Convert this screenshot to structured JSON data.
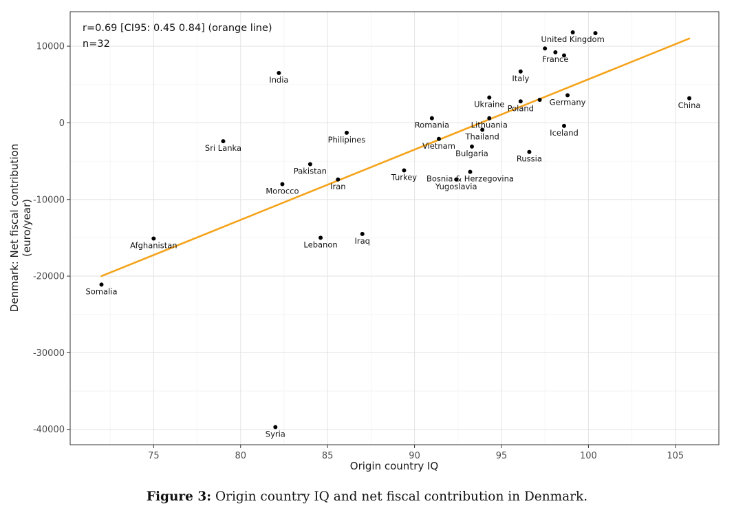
{
  "chart_data": {
    "type": "scatter",
    "title": "",
    "xlabel": "Origin country IQ",
    "ylabel_line1": "Denmark: Net fiscal contribution",
    "ylabel_line2": "(euro/year)",
    "xlim": [
      70.2,
      107.5
    ],
    "ylim": [
      -42000,
      14500
    ],
    "x_ticks": [
      75,
      80,
      85,
      90,
      95,
      100,
      105
    ],
    "x_tick_labels": [
      "75",
      "80",
      "85",
      "90",
      "95",
      "100",
      "105"
    ],
    "y_ticks": [
      10000,
      0,
      -10000,
      -20000,
      -30000,
      -40000
    ],
    "y_tick_labels": [
      "10000",
      "0",
      "-10000",
      "-20000",
      "-30000",
      "-40000"
    ],
    "annotation_line1": "r=0.69 [CI95: 0.45 0.84] (orange line)",
    "annotation_line2": "n=32",
    "fit_line": {
      "color": "#F5A31A",
      "x": [
        72,
        105.8
      ],
      "y": [
        -20000,
        11000
      ]
    },
    "points": [
      {
        "label": "Somalia",
        "x": 72.0,
        "y": -21100
      },
      {
        "label": "Afghanistan",
        "x": 75.0,
        "y": -15100
      },
      {
        "label": "Sri Lanka",
        "x": 79.0,
        "y": -2400
      },
      {
        "label": "Syria",
        "x": 82.0,
        "y": -39700
      },
      {
        "label": "India",
        "x": 82.2,
        "y": 6500
      },
      {
        "label": "Morocco",
        "x": 82.4,
        "y": -8000
      },
      {
        "label": "Pakistan",
        "x": 84.0,
        "y": -5400
      },
      {
        "label": "Lebanon",
        "x": 84.6,
        "y": -15000
      },
      {
        "label": "Iran",
        "x": 85.6,
        "y": -7400
      },
      {
        "label": "Philipines",
        "x": 86.1,
        "y": -1300
      },
      {
        "label": "Iraq",
        "x": 87.0,
        "y": -14500
      },
      {
        "label": "Turkey",
        "x": 89.4,
        "y": -6200
      },
      {
        "label": "Romania",
        "x": 91.0,
        "y": 600
      },
      {
        "label": "Vietnam",
        "x": 91.4,
        "y": -2100
      },
      {
        "label": "Yugoslavia",
        "x": 92.4,
        "y": -7400
      },
      {
        "label": "Bosnia & Herzegovina",
        "x": 93.2,
        "y": -6400
      },
      {
        "label": "Bulgaria",
        "x": 93.3,
        "y": -3100
      },
      {
        "label": "Thailand",
        "x": 93.9,
        "y": -900
      },
      {
        "label": "Lithuania",
        "x": 94.3,
        "y": 600
      },
      {
        "label": "Ukraine",
        "x": 94.3,
        "y": 3300
      },
      {
        "label": "Italy",
        "x": 96.1,
        "y": 6700
      },
      {
        "label": "Poland",
        "x": 96.1,
        "y": 2800
      },
      {
        "label": "Russia",
        "x": 96.6,
        "y": -3800
      },
      {
        "label": "",
        "x": 97.2,
        "y": 3000
      },
      {
        "label": "",
        "x": 97.5,
        "y": 9700
      },
      {
        "label": "France",
        "x": 98.1,
        "y": 9200
      },
      {
        "label": "",
        "x": 98.6,
        "y": 8800
      },
      {
        "label": "Iceland",
        "x": 98.6,
        "y": -400
      },
      {
        "label": "Germany",
        "x": 98.8,
        "y": 3600
      },
      {
        "label": "United Kingdom",
        "x": 99.1,
        "y": 11800
      },
      {
        "label": "",
        "x": 100.4,
        "y": 11700
      },
      {
        "label": "China",
        "x": 105.8,
        "y": 3200
      }
    ]
  },
  "caption": {
    "prefix": "Figure 3:",
    "text": " Origin country IQ and net fiscal contribution in Denmark."
  }
}
